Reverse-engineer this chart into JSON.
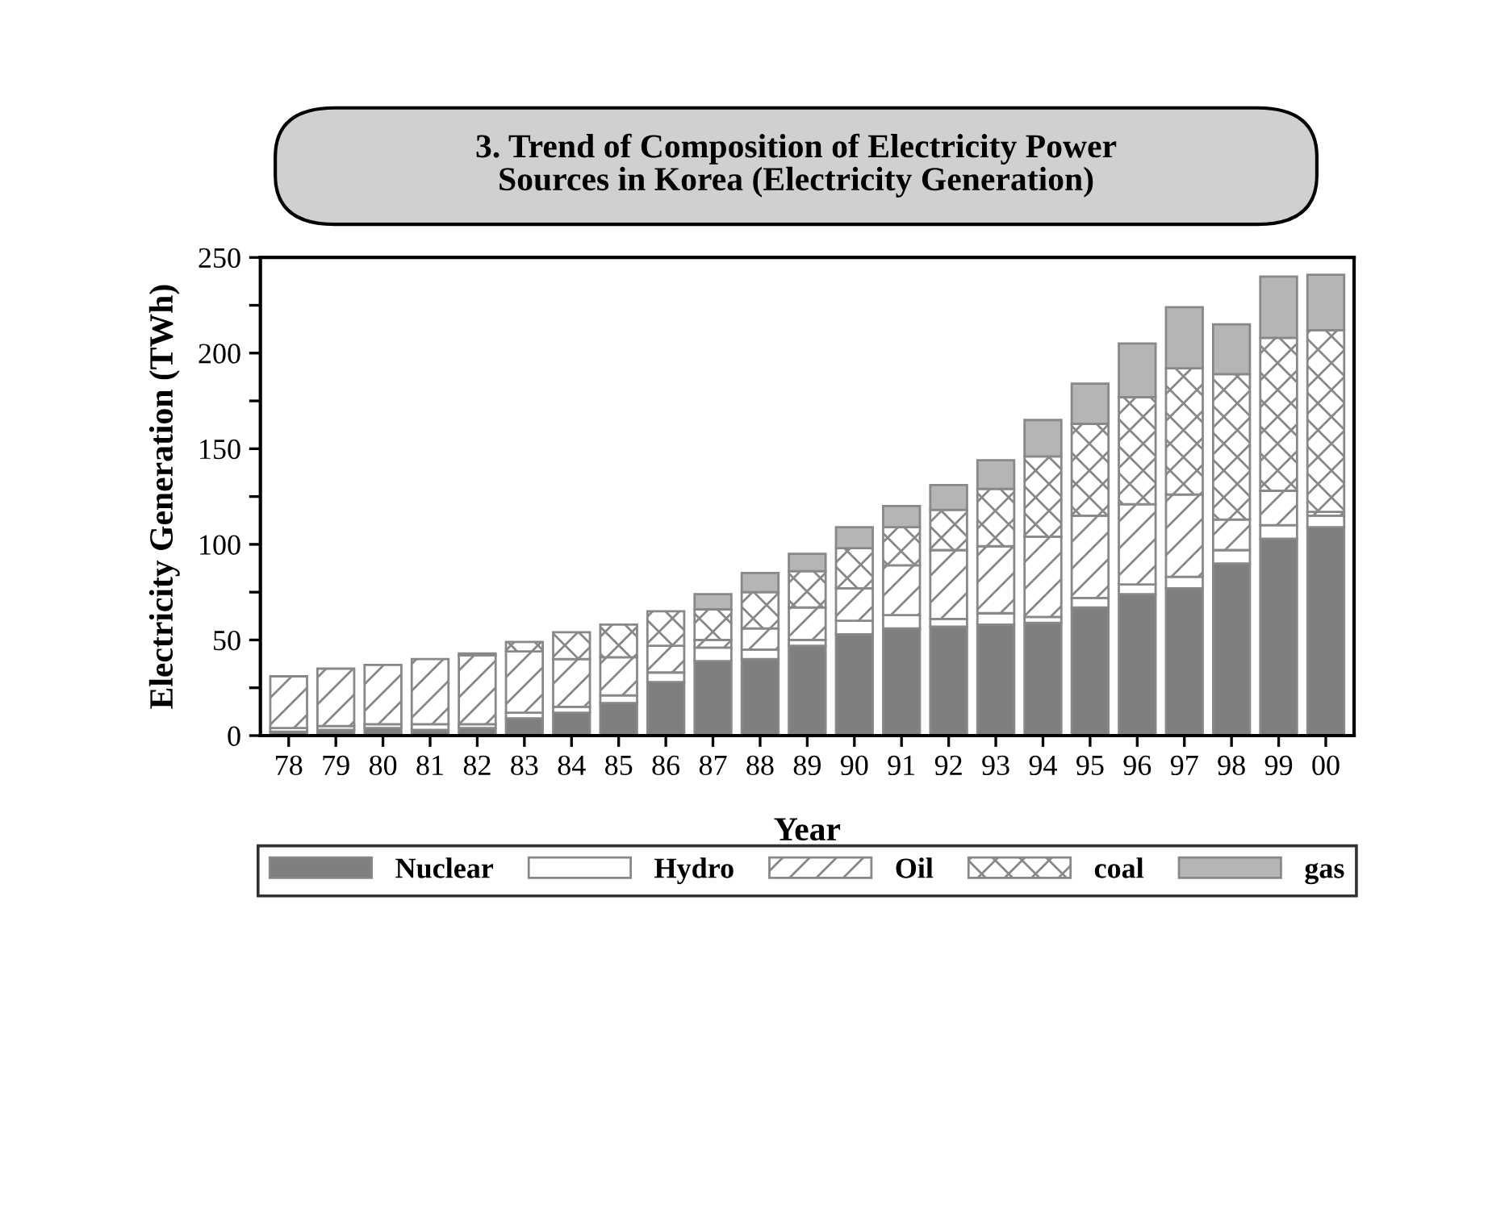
{
  "chart_data": {
    "type": "bar",
    "stacked": true,
    "title": "3. Trend of Composition of Electricity Power\nSources in Korea (Electricity Generation)",
    "xlabel": "Year",
    "ylabel": "Electricity Generation (TWh)",
    "categories": [
      "78",
      "79",
      "80",
      "81",
      "82",
      "83",
      "84",
      "85",
      "86",
      "87",
      "88",
      "89",
      "90",
      "91",
      "92",
      "93",
      "94",
      "95",
      "96",
      "97",
      "98",
      "99",
      "00"
    ],
    "series": [
      {
        "name": "Nuclear",
        "color": "#7f7f7f",
        "values": [
          2,
          3,
          4,
          3,
          4,
          9,
          12,
          17,
          28,
          39,
          40,
          47,
          53,
          56,
          57,
          58,
          59,
          67,
          74,
          77,
          90,
          103,
          109
        ]
      },
      {
        "name": "Hydro",
        "color": "#ffffff",
        "values": [
          2,
          2,
          2,
          3,
          2,
          3,
          3,
          4,
          5,
          7,
          5,
          3,
          7,
          7,
          4,
          6,
          3,
          5,
          5,
          6,
          7,
          7,
          6
        ]
      },
      {
        "name": "Oil",
        "color": "#888888",
        "values": [
          27,
          30,
          31,
          34,
          36,
          32,
          25,
          20,
          14,
          4,
          11,
          17,
          17,
          26,
          36,
          35,
          42,
          43,
          42,
          43,
          16,
          18,
          2
        ]
      },
      {
        "name": "coal",
        "color": "#888888",
        "values": [
          null,
          null,
          null,
          null,
          1,
          5,
          14,
          17,
          18,
          16,
          19,
          19,
          21,
          20,
          21,
          30,
          42,
          48,
          56,
          66,
          76,
          80,
          95
        ]
      },
      {
        "name": "gas",
        "color": "#b5b5b5",
        "values": [
          null,
          null,
          null,
          null,
          null,
          null,
          null,
          null,
          null,
          8,
          10,
          9,
          11,
          11,
          13,
          15,
          19,
          21,
          28,
          32,
          26,
          32,
          29
        ]
      }
    ],
    "ylim": [
      0,
      250
    ],
    "yticks": [
      0,
      {
        "value": 25,
        "label": null
      },
      50,
      {
        "value": 75,
        "label": null
      },
      100,
      {
        "value": 125,
        "label": null
      },
      150,
      {
        "value": 175,
        "label": null
      },
      200,
      {
        "value": 225,
        "label": null
      },
      250
    ],
    "grid": false,
    "legend": "bottom"
  }
}
